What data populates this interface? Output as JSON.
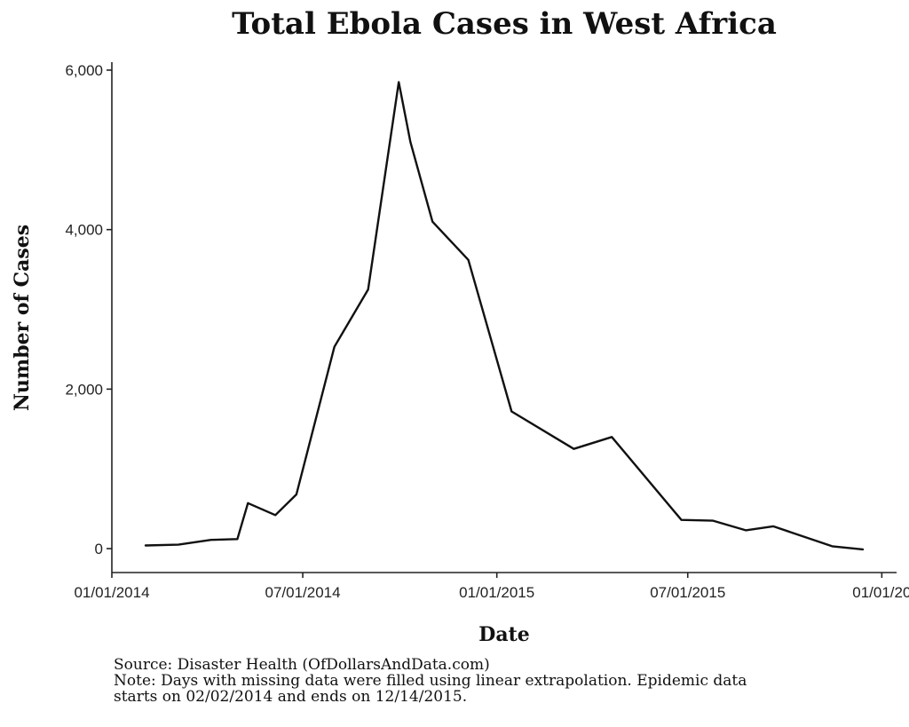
{
  "chart_data": {
    "type": "line",
    "title": "Total Ebola Cases in West Africa",
    "xlabel": "Date",
    "ylabel": "Number of Cases",
    "x_ticks": [
      "01/01/2014",
      "07/01/2014",
      "01/01/2015",
      "07/01/2015",
      "01/01/20"
    ],
    "y_ticks": [
      "0",
      "2,000",
      "4,000",
      "6,000"
    ],
    "xlim": [
      "2014-01-01",
      "2016-01-15"
    ],
    "ylim": [
      -300,
      6100
    ],
    "grid": false,
    "series": [
      {
        "color": "#111111",
        "points": [
          {
            "x": "2014-02-02",
            "y": 40
          },
          {
            "x": "2014-03-05",
            "y": 50
          },
          {
            "x": "2014-04-05",
            "y": 110
          },
          {
            "x": "2014-04-30",
            "y": 120
          },
          {
            "x": "2014-05-10",
            "y": 570
          },
          {
            "x": "2014-06-05",
            "y": 420
          },
          {
            "x": "2014-06-25",
            "y": 680
          },
          {
            "x": "2014-07-31",
            "y": 2530
          },
          {
            "x": "2014-09-01",
            "y": 3250
          },
          {
            "x": "2014-09-30",
            "y": 5850
          },
          {
            "x": "2014-10-11",
            "y": 5100
          },
          {
            "x": "2014-11-01",
            "y": 4100
          },
          {
            "x": "2014-12-05",
            "y": 3620
          },
          {
            "x": "2015-01-15",
            "y": 1720
          },
          {
            "x": "2015-03-15",
            "y": 1250
          },
          {
            "x": "2015-04-20",
            "y": 1400
          },
          {
            "x": "2015-06-25",
            "y": 360
          },
          {
            "x": "2015-07-25",
            "y": 350
          },
          {
            "x": "2015-08-25",
            "y": 230
          },
          {
            "x": "2015-09-20",
            "y": 280
          },
          {
            "x": "2015-11-15",
            "y": 30
          },
          {
            "x": "2015-12-14",
            "y": -10
          }
        ]
      }
    ]
  },
  "caption": {
    "source": "Source: Disaster Health (OfDollarsAndData.com)",
    "note": "Note: Days with missing data were filled using linear extrapolation. Epidemic data",
    "note2": "starts on 02/02/2014 and ends on 12/14/2015."
  }
}
